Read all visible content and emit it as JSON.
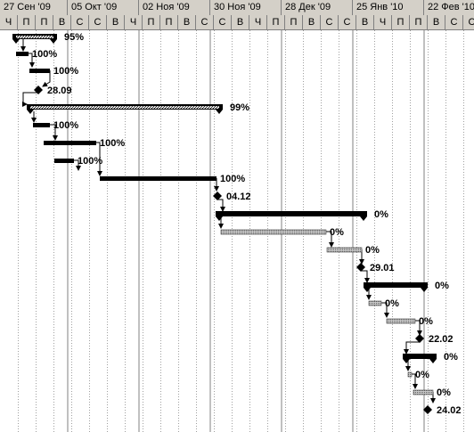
{
  "timescale": {
    "weeks": [
      "27 Сен '09",
      "05 Окт '09",
      "02 Ноя '09",
      "30 Ноя '09",
      "28 Дек '09",
      "25 Янв '10",
      "22 Фев '10"
    ],
    "days": [
      "Ч",
      "П",
      "П",
      "В",
      "С",
      "С",
      "В",
      "Ч",
      "П",
      "П",
      "В",
      "С",
      "С",
      "В",
      "Ч",
      "П",
      "П",
      "В",
      "С",
      "С",
      "В"
    ]
  },
  "tasks": [
    {
      "kind": "summary",
      "label": "95%",
      "progress": 0.95
    },
    {
      "kind": "task",
      "label": "100%",
      "progress": 1.0
    },
    {
      "kind": "task",
      "label": "100%",
      "progress": 1.0
    },
    {
      "kind": "milestone",
      "label": "28.09"
    },
    {
      "kind": "summary",
      "label": "99%",
      "progress": 0.99
    },
    {
      "kind": "task",
      "label": "100%",
      "progress": 1.0
    },
    {
      "kind": "task",
      "label": "100%",
      "progress": 1.0
    },
    {
      "kind": "task",
      "label": "100%",
      "progress": 1.0
    },
    {
      "kind": "task",
      "label": "100%",
      "progress": 1.0
    },
    {
      "kind": "milestone",
      "label": "04.12"
    },
    {
      "kind": "summary",
      "label": "0%",
      "progress": 0
    },
    {
      "kind": "task",
      "label": "0%",
      "progress": 0
    },
    {
      "kind": "task",
      "label": "0%",
      "progress": 0
    },
    {
      "kind": "milestone",
      "label": "29.01"
    },
    {
      "kind": "summary",
      "label": "0%",
      "progress": 0
    },
    {
      "kind": "task",
      "label": "0%",
      "progress": 0
    },
    {
      "kind": "task",
      "label": "0%",
      "progress": 0
    },
    {
      "kind": "milestone",
      "label": "22.02"
    },
    {
      "kind": "summary",
      "label": "0%",
      "progress": 0
    },
    {
      "kind": "task",
      "label": "0%",
      "progress": 0
    },
    {
      "kind": "task",
      "label": "0%",
      "progress": 0
    },
    {
      "kind": "milestone",
      "label": "24.02"
    }
  ],
  "colors": {
    "header_bg": "#d4d0c8",
    "bar": "#000000",
    "planned": "#c0c0c0"
  }
}
